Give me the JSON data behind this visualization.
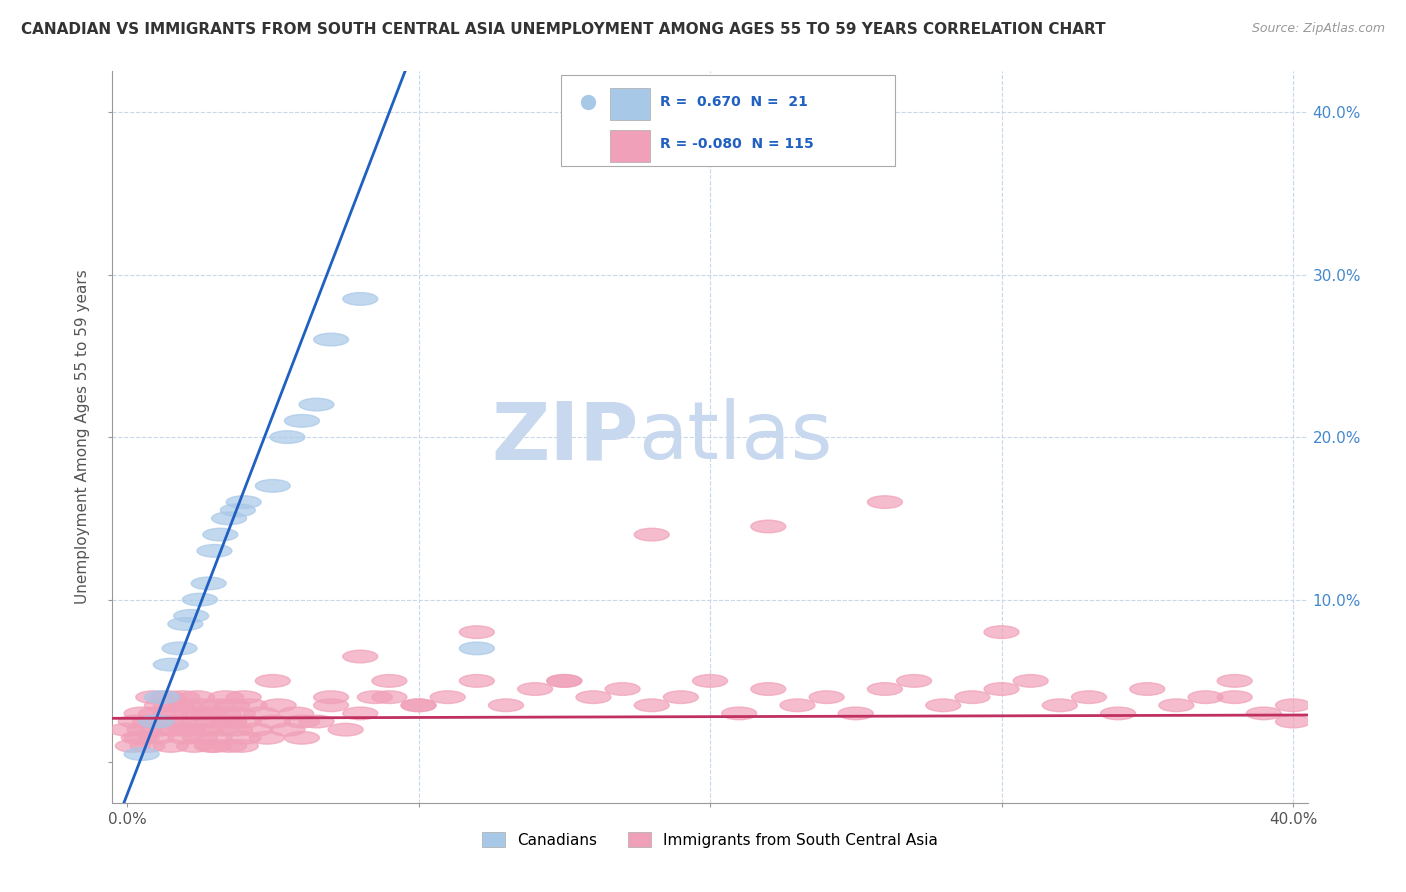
{
  "title": "CANADIAN VS IMMIGRANTS FROM SOUTH CENTRAL ASIA UNEMPLOYMENT AMONG AGES 55 TO 59 YEARS CORRELATION CHART",
  "source": "Source: ZipAtlas.com",
  "ylabel": "Unemployment Among Ages 55 to 59 years",
  "xlim": [
    -0.005,
    0.405
  ],
  "ylim": [
    -0.025,
    0.425
  ],
  "xticks": [
    0.0,
    0.1,
    0.2,
    0.3,
    0.4
  ],
  "yticks": [
    0.0,
    0.1,
    0.2,
    0.3,
    0.4
  ],
  "xtick_labels": [
    "0.0%",
    "",
    "",
    "",
    "40.0%"
  ],
  "ytick_labels_left": [
    "",
    "",
    "",
    "",
    ""
  ],
  "ytick_labels_right": [
    "",
    "10.0%",
    "20.0%",
    "30.0%",
    "40.0%"
  ],
  "canadians_color": "#a8c8e8",
  "immigrants_color": "#f0a0b8",
  "trend_canadian_color": "#2060c0",
  "trend_immigrant_color": "#c03060",
  "watermark_zip": "ZIP",
  "watermark_atlas": "atlas",
  "watermark_color_zip": "#c8d8ee",
  "watermark_color_atlas": "#c8d8ee",
  "legend_R_canadian": "0.670",
  "legend_N_canadian": "21",
  "legend_R_immigrant": "-0.080",
  "legend_N_immigrant": "115",
  "background_color": "#ffffff",
  "grid_color": "#c8d8e8",
  "canadians_x": [
    0.005,
    0.01,
    0.012,
    0.015,
    0.018,
    0.02,
    0.022,
    0.025,
    0.028,
    0.03,
    0.032,
    0.035,
    0.038,
    0.04,
    0.05,
    0.055,
    0.06,
    0.065,
    0.07,
    0.08,
    0.12
  ],
  "canadians_y": [
    0.005,
    0.025,
    0.04,
    0.06,
    0.07,
    0.085,
    0.09,
    0.1,
    0.11,
    0.13,
    0.14,
    0.15,
    0.155,
    0.16,
    0.17,
    0.2,
    0.21,
    0.22,
    0.26,
    0.285,
    0.07
  ],
  "imm_x": [
    0.0,
    0.002,
    0.003,
    0.004,
    0.005,
    0.006,
    0.007,
    0.008,
    0.009,
    0.01,
    0.01,
    0.011,
    0.012,
    0.013,
    0.014,
    0.015,
    0.015,
    0.016,
    0.017,
    0.018,
    0.019,
    0.02,
    0.02,
    0.021,
    0.022,
    0.023,
    0.024,
    0.025,
    0.025,
    0.026,
    0.027,
    0.028,
    0.029,
    0.03,
    0.03,
    0.031,
    0.032,
    0.033,
    0.034,
    0.035,
    0.035,
    0.036,
    0.037,
    0.038,
    0.039,
    0.04,
    0.04,
    0.042,
    0.044,
    0.046,
    0.048,
    0.05,
    0.052,
    0.055,
    0.058,
    0.06,
    0.065,
    0.07,
    0.075,
    0.08,
    0.085,
    0.09,
    0.1,
    0.11,
    0.12,
    0.13,
    0.14,
    0.15,
    0.16,
    0.17,
    0.18,
    0.19,
    0.2,
    0.21,
    0.22,
    0.23,
    0.24,
    0.25,
    0.26,
    0.27,
    0.28,
    0.29,
    0.3,
    0.31,
    0.32,
    0.33,
    0.34,
    0.35,
    0.36,
    0.37,
    0.38,
    0.39,
    0.4,
    0.005,
    0.01,
    0.015,
    0.02,
    0.025,
    0.03,
    0.035,
    0.04,
    0.05,
    0.06,
    0.07,
    0.08,
    0.09,
    0.1,
    0.12,
    0.15,
    0.18,
    0.22,
    0.26,
    0.3,
    0.38,
    0.4
  ],
  "imm_y": [
    0.02,
    0.01,
    0.025,
    0.015,
    0.03,
    0.02,
    0.01,
    0.025,
    0.04,
    0.015,
    0.03,
    0.02,
    0.035,
    0.025,
    0.04,
    0.01,
    0.03,
    0.02,
    0.035,
    0.025,
    0.04,
    0.015,
    0.035,
    0.02,
    0.03,
    0.01,
    0.04,
    0.015,
    0.025,
    0.035,
    0.02,
    0.03,
    0.01,
    0.015,
    0.025,
    0.035,
    0.02,
    0.03,
    0.04,
    0.01,
    0.025,
    0.035,
    0.02,
    0.03,
    0.01,
    0.015,
    0.025,
    0.035,
    0.02,
    0.03,
    0.015,
    0.025,
    0.035,
    0.02,
    0.03,
    0.015,
    0.025,
    0.035,
    0.02,
    0.03,
    0.04,
    0.05,
    0.035,
    0.04,
    0.05,
    0.035,
    0.045,
    0.05,
    0.04,
    0.045,
    0.035,
    0.04,
    0.05,
    0.03,
    0.045,
    0.035,
    0.04,
    0.03,
    0.045,
    0.05,
    0.035,
    0.04,
    0.045,
    0.05,
    0.035,
    0.04,
    0.03,
    0.045,
    0.035,
    0.04,
    0.05,
    0.03,
    0.035,
    0.015,
    0.025,
    0.035,
    0.02,
    0.03,
    0.01,
    0.025,
    0.04,
    0.05,
    0.025,
    0.04,
    0.065,
    0.04,
    0.035,
    0.08,
    0.05,
    0.14,
    0.145,
    0.16,
    0.08,
    0.04,
    0.025
  ]
}
